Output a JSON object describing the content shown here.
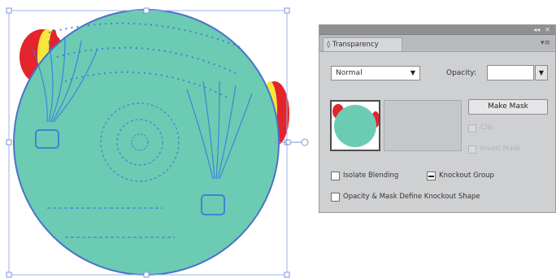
{
  "artwork": {
    "fill_color": "#6ccbb3",
    "stroke_color": "#4a73c7",
    "pattern_color": "#3d7bdc",
    "balloon_colors": [
      "#e3242b",
      "#f7e73a"
    ],
    "selection_color": "#9fb2e8"
  },
  "panel": {
    "title_tab": "◊ Transparency",
    "menu_icon": "panel-menu-icon",
    "blend_mode": {
      "selected": "Normal"
    },
    "opacity_label": "Opacity:",
    "opacity_value": "",
    "make_mask_label": "Make Mask",
    "clip_label": "Clip",
    "invert_mask_label": "Invert Mask",
    "isolate_blending_label": "Isolate Blending",
    "knockout_group_label": "Knockout Group",
    "opacity_mask_label": "Opacity & Mask Define Knockout Shape"
  }
}
